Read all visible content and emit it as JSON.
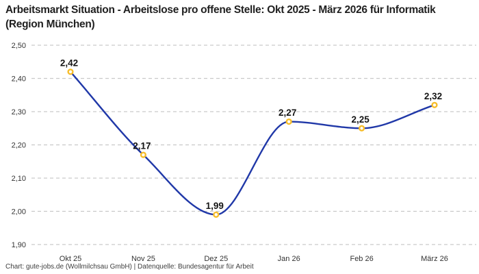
{
  "title": "Arbeitsmarkt Situation - Arbeitslose pro offene Stelle: Okt 2025 - März 2026 für Informatik (Region München)",
  "footer": "Chart: gute-jobs.de (Wollmilchsau GmbH) | Datenquelle: Bundesagentur für Arbeit",
  "colors": {
    "background": "#ffffff",
    "line": "#2038a8",
    "marker_stroke": "#f7bd2a",
    "marker_fill": "#ffffff",
    "grid": "#c9c9c9",
    "title_text": "#1f1f1f",
    "tick_text": "#333333",
    "point_label_text": "#141414",
    "footer_text": "#3d3d3d"
  },
  "chart_data": {
    "type": "line",
    "title": "Arbeitsmarkt Situation - Arbeitslose pro offene Stelle: Okt 2025 - März 2026 für Informatik (Region München)",
    "categories": [
      "Okt 25",
      "Nov 25",
      "Dez 25",
      "Jan 26",
      "Feb 26",
      "März 26"
    ],
    "values": [
      2.42,
      2.17,
      1.99,
      2.27,
      2.25,
      2.32
    ],
    "point_labels": [
      "2,42",
      "2,17",
      "1,99",
      "2,27",
      "2,25",
      "2,32"
    ],
    "y_ticks": [
      {
        "value": 2.5,
        "label": "2,50"
      },
      {
        "value": 2.4,
        "label": "2,40"
      },
      {
        "value": 2.3,
        "label": "2,30"
      },
      {
        "value": 2.2,
        "label": "2,20"
      },
      {
        "value": 2.1,
        "label": "2,10"
      },
      {
        "value": 2.0,
        "label": "2,00"
      },
      {
        "value": 1.9,
        "label": "1,90"
      }
    ],
    "ylim": [
      1.9,
      2.5
    ],
    "xlabel": "",
    "ylabel": "",
    "grid": "horizontal-dashed",
    "line_style": "smooth-monotone",
    "marker": "open-circle",
    "legend": "none",
    "source": "Chart: gute-jobs.de (Wollmilchsau GmbH) | Datenquelle: Bundesagentur für Arbeit"
  }
}
